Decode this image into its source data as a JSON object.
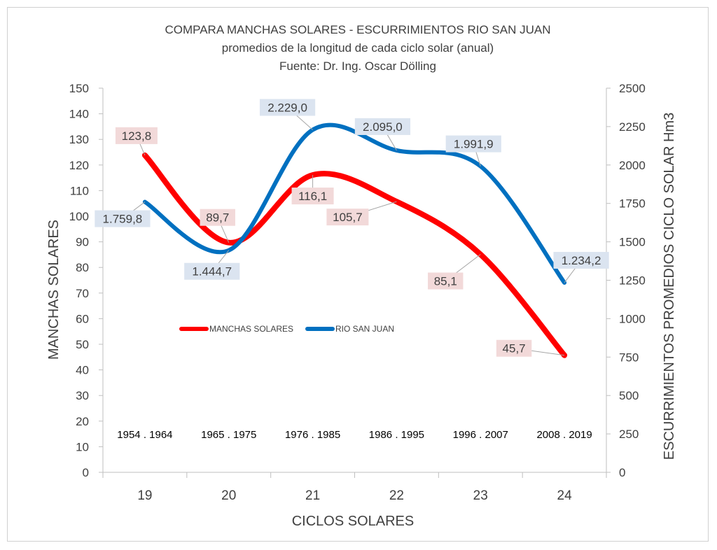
{
  "chart_data": {
    "type": "line",
    "title": "COMPARA MANCHAS SOLARES - ESCURRIMIENTOS RIO SAN JUAN",
    "subtitle": "promedios de la longitud de cada ciclo solar (anual)",
    "source": "Fuente: Dr. Ing. Oscar Dölling",
    "xlabel": "CICLOS SOLARES",
    "ylabel_left": "MANCHAS SOLARES",
    "ylabel_right": "ESCURRIMIENTOS PROMEDIOS CICLO SOLAR  Hm3",
    "categories": [
      "19",
      "20",
      "21",
      "22",
      "23",
      "24"
    ],
    "periods": [
      "1954 . 1964",
      "1965 . 1975",
      "1976 . 1985",
      "1986 . 1995",
      "1996 . 2007",
      "2008 . 2019"
    ],
    "ylim_left": [
      0,
      150
    ],
    "yticks_left": [
      "0",
      "10",
      "20",
      "30",
      "40",
      "50",
      "60",
      "70",
      "80",
      "90",
      "100",
      "110",
      "120",
      "130",
      "140",
      "150"
    ],
    "ylim_right": [
      0,
      2500
    ],
    "yticks_right": [
      "0",
      "250",
      "500",
      "750",
      "1000",
      "1250",
      "1500",
      "1750",
      "2000",
      "2250",
      "2500"
    ],
    "grid": false,
    "legend_position": "center-left",
    "series": [
      {
        "name": "MANCHAS SOLARES",
        "axis": "left",
        "color": "#ff0000",
        "values": [
          123.8,
          89.7,
          116.1,
          105.7,
          85.1,
          45.7
        ],
        "labels": [
          "123,8",
          "89,7",
          "116,1",
          "105,7",
          "85,1",
          "45,7"
        ],
        "label_bg": "#f2d9d9"
      },
      {
        "name": "RIO SAN JUAN",
        "axis": "right",
        "color": "#0070c0",
        "values": [
          1759.8,
          1444.7,
          2229.0,
          2095.0,
          1991.9,
          1234.2
        ],
        "labels": [
          "1.759,8",
          "1.444,7",
          "2.229,0",
          "2.095,0",
          "1.991,9",
          "1.234,2"
        ],
        "label_bg": "#dbe4f0"
      }
    ]
  }
}
